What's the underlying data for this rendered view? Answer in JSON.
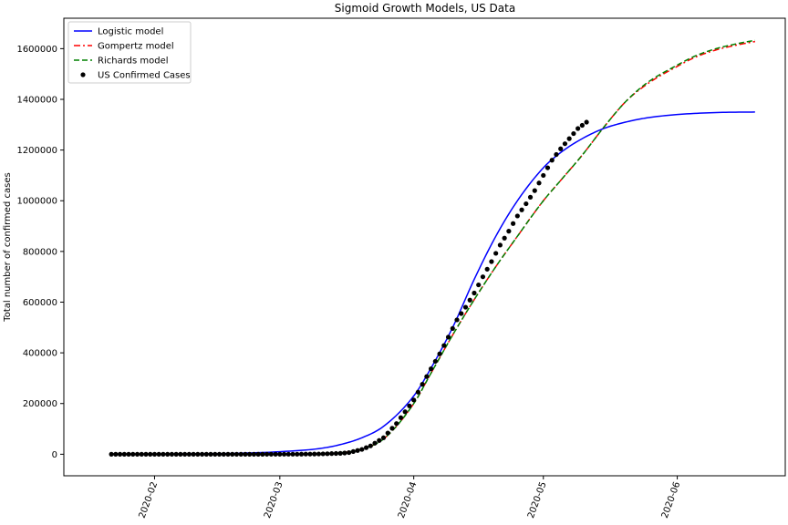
{
  "chart_data": {
    "type": "line",
    "title": "Sigmoid Growth Models, US Data",
    "xlabel": "",
    "ylabel": "Total number of confirmed cases",
    "x_axis_kind": "date",
    "xlim": [
      "2020-01-11",
      "2020-06-26"
    ],
    "ylim": [
      -85000,
      1720000
    ],
    "x_ticks": [
      "2020-02",
      "2020-03",
      "2020-04",
      "2020-05",
      "2020-06"
    ],
    "y_ticks": [
      0,
      200000,
      400000,
      600000,
      800000,
      1000000,
      1200000,
      1400000,
      1600000
    ],
    "grid": false,
    "legend": {
      "position": "top-left",
      "entries": [
        "Logistic model",
        "Gompertz model",
        "Richards model",
        "US Confirmed Cases"
      ]
    },
    "colors": {
      "logistic": "#0000ff",
      "gompertz": "#ff0000",
      "richards": "#008000",
      "observed": "#000000"
    },
    "series": [
      {
        "name": "Logistic model",
        "style": "solid",
        "x": [
          "2020-01-22",
          "2020-02-01",
          "2020-02-10",
          "2020-02-20",
          "2020-03-01",
          "2020-03-10",
          "2020-03-15",
          "2020-03-20",
          "2020-03-25",
          "2020-04-01",
          "2020-04-05",
          "2020-04-10",
          "2020-04-15",
          "2020-04-20",
          "2020-04-25",
          "2020-05-01",
          "2020-05-05",
          "2020-05-10",
          "2020-05-15",
          "2020-05-20",
          "2020-05-25",
          "2020-06-01",
          "2020-06-10",
          "2020-06-19"
        ],
        "values": [
          0,
          500,
          1200,
          3500,
          10000,
          22000,
          38000,
          65000,
          110000,
          230000,
          340000,
          500000,
          690000,
          860000,
          1000000,
          1130000,
          1190000,
          1245000,
          1285000,
          1310000,
          1327000,
          1340000,
          1348000,
          1350000
        ]
      },
      {
        "name": "Gompertz model",
        "style": "dashdot",
        "x": [
          "2020-01-22",
          "2020-02-15",
          "2020-03-01",
          "2020-03-10",
          "2020-03-15",
          "2020-03-20",
          "2020-03-25",
          "2020-04-01",
          "2020-04-05",
          "2020-04-10",
          "2020-04-15",
          "2020-04-20",
          "2020-04-25",
          "2020-05-01",
          "2020-05-05",
          "2020-05-10",
          "2020-05-15",
          "2020-05-20",
          "2020-05-25",
          "2020-06-01",
          "2020-06-05",
          "2020-06-10",
          "2020-06-15",
          "2020-06-19"
        ],
        "values": [
          0,
          0,
          0,
          1500,
          6000,
          20000,
          60000,
          200000,
          320000,
          470000,
          610000,
          740000,
          860000,
          1000000,
          1080000,
          1180000,
          1290000,
          1390000,
          1460000,
          1530000,
          1565000,
          1595000,
          1615000,
          1628000
        ]
      },
      {
        "name": "Richards model",
        "style": "dashed",
        "x": [
          "2020-01-22",
          "2020-02-15",
          "2020-03-01",
          "2020-03-10",
          "2020-03-15",
          "2020-03-20",
          "2020-03-25",
          "2020-04-01",
          "2020-04-05",
          "2020-04-10",
          "2020-04-15",
          "2020-04-20",
          "2020-04-25",
          "2020-05-01",
          "2020-05-05",
          "2020-05-10",
          "2020-05-15",
          "2020-05-20",
          "2020-05-25",
          "2020-06-01",
          "2020-06-05",
          "2020-06-10",
          "2020-06-15",
          "2020-06-19"
        ],
        "values": [
          0,
          0,
          0,
          1500,
          6000,
          20000,
          60000,
          200000,
          320000,
          470000,
          610000,
          740000,
          860000,
          1000000,
          1080000,
          1180000,
          1290000,
          1390000,
          1465000,
          1535000,
          1570000,
          1600000,
          1620000,
          1633000
        ]
      }
    ],
    "observed": {
      "name": "US Confirmed Cases",
      "x": [
        "2020-01-22",
        "2020-02-19",
        "2020-03-01",
        "2020-03-05",
        "2020-03-10",
        "2020-03-15",
        "2020-03-17",
        "2020-03-20",
        "2020-03-22",
        "2020-03-25",
        "2020-03-28",
        "2020-04-01",
        "2020-04-03",
        "2020-04-05",
        "2020-04-07",
        "2020-04-09",
        "2020-04-11",
        "2020-04-13",
        "2020-04-15",
        "2020-04-17",
        "2020-04-19",
        "2020-04-21",
        "2020-04-23",
        "2020-04-25",
        "2020-04-27",
        "2020-04-29",
        "2020-05-01",
        "2020-05-03",
        "2020-05-05",
        "2020-05-07",
        "2020-05-09",
        "2020-05-11"
      ],
      "values": [
        1,
        15,
        75,
        220,
        1000,
        3500,
        6400,
        19000,
        33000,
        65000,
        121000,
        214000,
        276000,
        337000,
        396000,
        462000,
        530000,
        580000,
        636000,
        700000,
        760000,
        825000,
        880000,
        940000,
        988000,
        1040000,
        1100000,
        1160000,
        1205000,
        1245000,
        1285000,
        1310000
      ]
    }
  }
}
